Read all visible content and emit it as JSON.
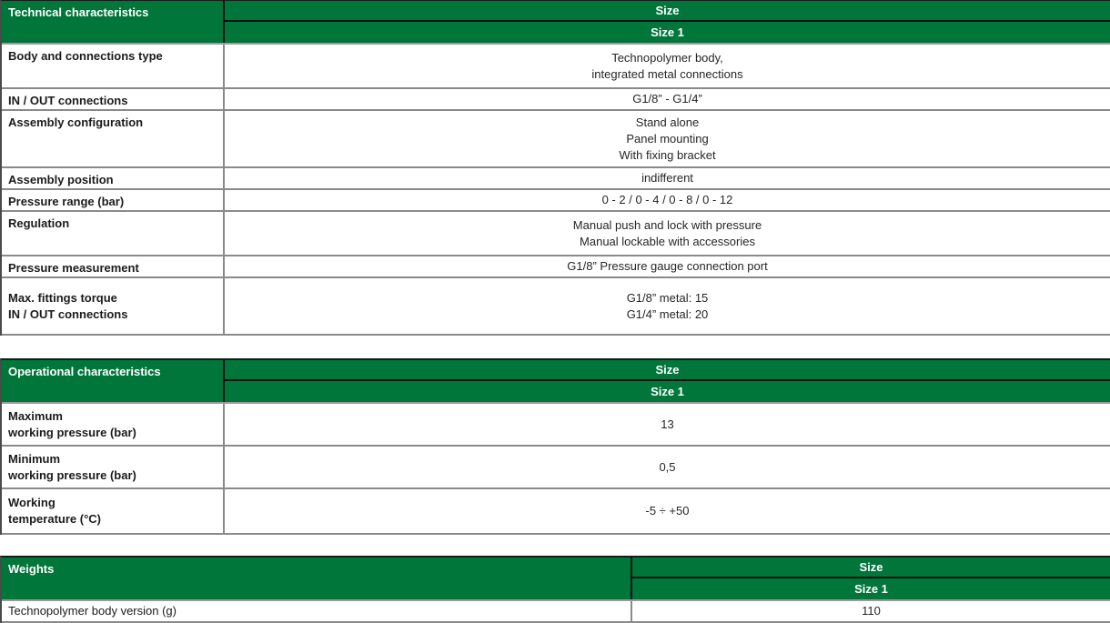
{
  "colors": {
    "accent_green": "#00763B",
    "header_text": "#ffffff",
    "grid_gray": "#8a8a8a",
    "grid_black": "#111111"
  },
  "tables": [
    {
      "title": "Technical characteristics",
      "col_header": "Size",
      "col_subheader": "Size 1",
      "rows": [
        {
          "label": [
            "Body and connections type"
          ],
          "value": [
            "Technopolymer body,",
            "integrated metal connections"
          ]
        },
        {
          "label": [
            "IN / OUT connections"
          ],
          "value": [
            "G1/8” - G1/4”"
          ]
        },
        {
          "label": [
            "Assembly configuration"
          ],
          "value": [
            "Stand alone",
            "Panel mounting",
            "With fixing bracket"
          ]
        },
        {
          "label": [
            "Assembly position"
          ],
          "value": [
            "indifferent"
          ]
        },
        {
          "label": [
            "Pressure range (bar)"
          ],
          "value": [
            "0 - 2 / 0 - 4 / 0 - 8 / 0 - 12"
          ]
        },
        {
          "label": [
            "Regulation"
          ],
          "value": [
            "Manual push and lock with pressure",
            "Manual lockable with accessories"
          ]
        },
        {
          "label": [
            "Pressure measurement"
          ],
          "value": [
            "G1/8” Pressure gauge connection port"
          ]
        },
        {
          "label": [
            "Max. fittings torque",
            "IN / OUT connections"
          ],
          "value": [
            "G1/8” metal: 15",
            "G1/4” metal: 20"
          ]
        }
      ]
    },
    {
      "title": "Operational characteristics",
      "col_header": "Size",
      "col_subheader": "Size 1",
      "rows": [
        {
          "label": [
            "Maximum",
            "working pressure (bar)"
          ],
          "value": [
            "13"
          ]
        },
        {
          "label": [
            "Minimum",
            "working pressure (bar)"
          ],
          "value": [
            "0,5"
          ]
        },
        {
          "label": [
            "Working",
            "temperature (°C)"
          ],
          "value": [
            "-5 ÷ +50"
          ]
        }
      ]
    },
    {
      "title": "Weights",
      "col_header": "Size",
      "col_subheader": "Size 1",
      "rows": [
        {
          "label": [
            "Technopolymer body version (g)"
          ],
          "value": [
            "110"
          ]
        }
      ]
    }
  ]
}
